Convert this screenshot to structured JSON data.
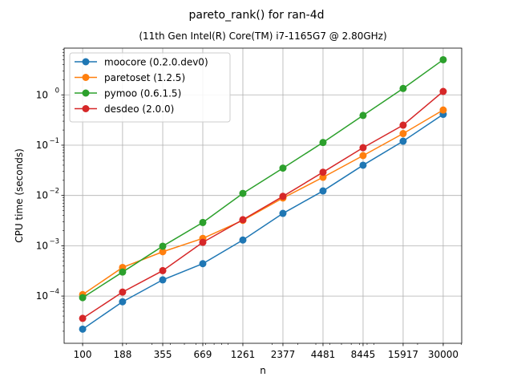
{
  "chart_data": {
    "type": "line",
    "title": "pareto_rank() for ran-4d",
    "subtitle": "(11th Gen Intel(R) Core(TM) i7-1165G7 @ 2.80GHz)",
    "xlabel": "n",
    "ylabel": "CPU time (seconds)",
    "xscale": "log",
    "yscale": "log",
    "grid": true,
    "legend_position": "top-left",
    "x": [
      100,
      188,
      355,
      669,
      1261,
      2377,
      4481,
      8445,
      15917,
      30000
    ],
    "x_tick_labels": [
      "100",
      "188",
      "355",
      "669",
      "1261",
      "2377",
      "4481",
      "8445",
      "15917",
      "30000"
    ],
    "y_ticks": [
      {
        "value": 0.0001,
        "base": "10",
        "exp": "−4"
      },
      {
        "value": 0.001,
        "base": "10",
        "exp": "−3"
      },
      {
        "value": 0.01,
        "base": "10",
        "exp": "−2"
      },
      {
        "value": 0.1,
        "base": "10",
        "exp": "−1"
      },
      {
        "value": 1,
        "base": "10",
        "exp": "0"
      }
    ],
    "ylim": [
      1.15e-05,
      8.5
    ],
    "xlim": [
      74.6,
      40200
    ],
    "series": [
      {
        "name": "moocore (0.2.0.dev0)",
        "color": "#1f77b4",
        "values": [
          2.2e-05,
          7.7e-05,
          0.00021,
          0.00044,
          0.0013,
          0.0044,
          0.0123,
          0.04,
          0.12,
          0.41
        ]
      },
      {
        "name": "paretoset (1.2.5)",
        "color": "#ff7f0e",
        "values": [
          0.000107,
          0.00037,
          0.00076,
          0.0014,
          0.0032,
          0.0089,
          0.023,
          0.062,
          0.17,
          0.5
        ]
      },
      {
        "name": "pymoo (0.6.1.5)",
        "color": "#2ca02c",
        "values": [
          9.3e-05,
          0.0003,
          0.00098,
          0.0029,
          0.011,
          0.035,
          0.113,
          0.39,
          1.34,
          5.0
        ]
      },
      {
        "name": "desdeo (2.0.0)",
        "color": "#d62728",
        "values": [
          3.6e-05,
          0.00012,
          0.00032,
          0.00117,
          0.0033,
          0.0096,
          0.029,
          0.089,
          0.25,
          1.17
        ]
      }
    ]
  }
}
